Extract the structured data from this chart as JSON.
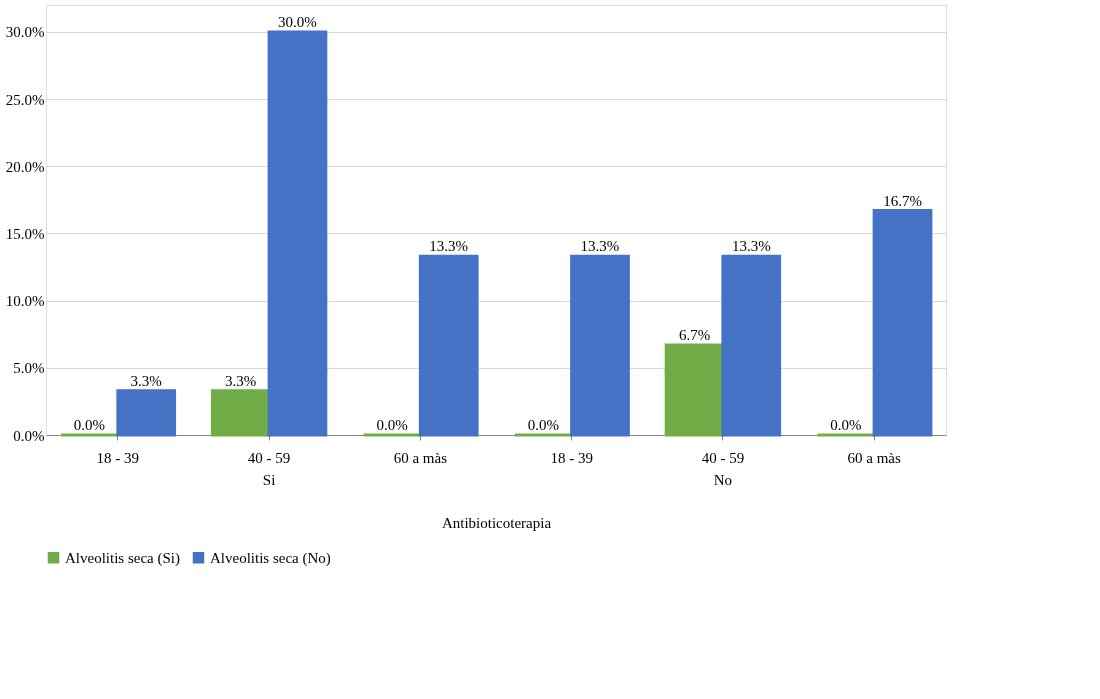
{
  "chart_data": {
    "type": "bar",
    "xlabel": "Antibioticoterapia",
    "categories": [
      "18 - 39",
      "40 - 59",
      "60 a màs",
      "18 - 39",
      "40 - 59",
      "60 a màs"
    ],
    "annotations": [
      "Si",
      "No"
    ],
    "series": [
      {
        "name": "Alveolitis seca (Si)",
        "color": "#70ad47",
        "values": [
          0.0,
          3.3,
          0.0,
          0.0,
          6.7,
          0.0
        ],
        "value_labels": [
          "0.0%",
          "3.3%",
          "0.0%",
          "0.0%",
          "6.7%",
          "0.0%"
        ]
      },
      {
        "name": "Alveolitis seca (No)",
        "color": "#4472c4",
        "values": [
          3.3,
          30.0,
          13.3,
          13.3,
          13.3,
          16.7
        ],
        "value_labels": [
          "3.3%",
          "30.0%",
          "13.3%",
          "13.3%",
          "13.3%",
          "16.7%"
        ]
      }
    ],
    "ylim": [
      0,
      32
    ],
    "yticks": [
      {
        "value": 0,
        "label": "0.0%"
      },
      {
        "value": 5,
        "label": "5.0%"
      },
      {
        "value": 10,
        "label": "10.0%"
      },
      {
        "value": 15,
        "label": "15.0%"
      },
      {
        "value": 20,
        "label": "20.0%"
      },
      {
        "value": 25,
        "label": "25.0%"
      },
      {
        "value": 30,
        "label": "30.0%"
      }
    ],
    "grid": "y",
    "legend": "bottom"
  }
}
